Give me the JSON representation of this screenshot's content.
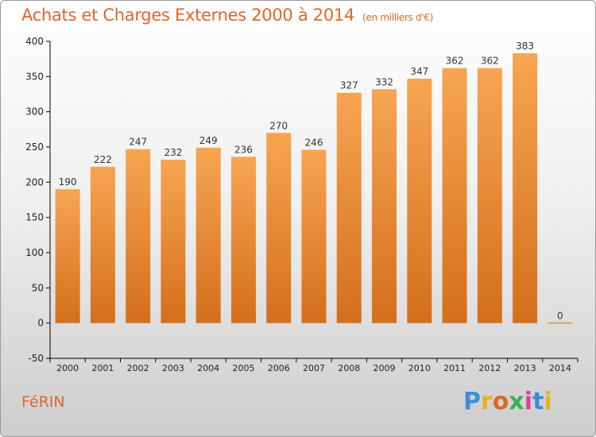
{
  "header": {
    "title": "Achats et Charges Externes 2000 à 2014",
    "unit": "(en milliers d'€)"
  },
  "footer": {
    "commune": "FéRIN",
    "logo": "Proxiti"
  },
  "colors": {
    "title": "#e0652a",
    "bar_top": "#f7a552",
    "bar_bottom": "#d46f1c",
    "axis": "#000000"
  },
  "chart_data": {
    "type": "bar",
    "title": "Achats et Charges Externes 2000 à 2014",
    "subtitle": "(en milliers d'€)",
    "xlabel": "",
    "ylabel": "",
    "categories": [
      "2000",
      "2001",
      "2002",
      "2003",
      "2004",
      "2005",
      "2006",
      "2007",
      "2008",
      "2009",
      "2010",
      "2011",
      "2012",
      "2013",
      "2014"
    ],
    "values": [
      190,
      222,
      247,
      232,
      249,
      236,
      270,
      246,
      327,
      332,
      347,
      362,
      362,
      383,
      0
    ],
    "ylim": [
      -50,
      400
    ],
    "yticks": [
      -50,
      0,
      50,
      100,
      150,
      200,
      250,
      300,
      350,
      400
    ],
    "grid": false,
    "legend": "none"
  }
}
